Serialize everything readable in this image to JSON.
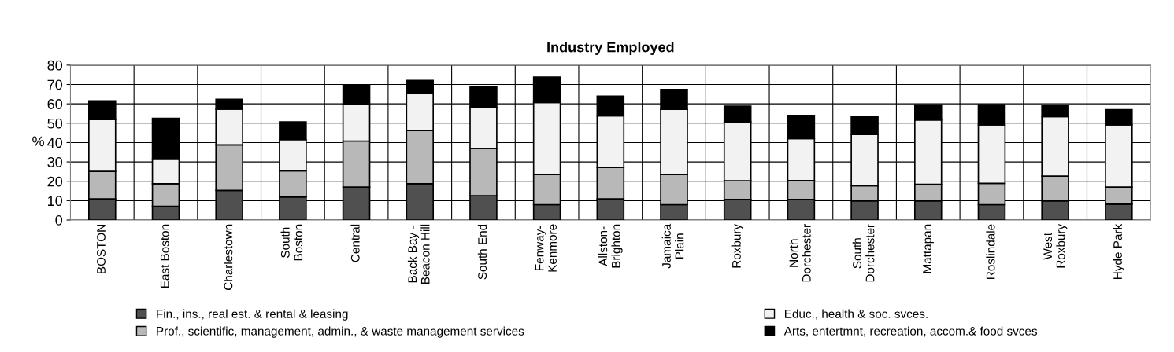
{
  "chart_data": {
    "type": "bar",
    "title": "Industry Employed",
    "ylabel": "%",
    "stacked": true,
    "categories": [
      "BOSTON",
      "East Boston",
      "Charlestown",
      "South\nBoston",
      "Central",
      "Back Bay -\nBeacon Hill",
      "South End",
      "Fenway-\nKenmore",
      "Allston-\nBrighton",
      "Jamaica\nPlain",
      "Roxbury",
      "North\nDorchester",
      "South\nDorchester",
      "Mattapan",
      "Roslindale",
      "West\nRoxbury",
      "Hyde Park"
    ],
    "series": [
      {
        "name": "Fin., ins., real est. & rental & leasing",
        "color": "#505050",
        "values": [
          10.9,
          7.1,
          15.3,
          11.9,
          17.0,
          18.7,
          12.5,
          7.9,
          10.9,
          7.9,
          10.6,
          10.6,
          9.9,
          9.9,
          7.9,
          9.9,
          8.2
        ]
      },
      {
        "name": "Prof., scientific, management, admin., & waste management services",
        "color": "#b8b8b8",
        "values": [
          14.2,
          11.6,
          23.5,
          13.5,
          23.8,
          27.5,
          24.5,
          15.6,
          16.2,
          15.6,
          9.7,
          9.8,
          7.8,
          8.5,
          11.0,
          12.8,
          8.8
        ]
      },
      {
        "name": "Educ., health & soc. svces.",
        "color": "#f2f2f2",
        "values": [
          26.8,
          12.7,
          18.5,
          16.1,
          19.1,
          19.2,
          21.1,
          37.2,
          26.7,
          33.7,
          30.4,
          21.6,
          26.5,
          33.3,
          30.2,
          30.7,
          32.1
        ]
      },
      {
        "name": "Arts, entertmnt, recreation, accom.& food svces",
        "color": "#000000",
        "values": [
          9.7,
          21.1,
          5.1,
          9.2,
          10.0,
          6.7,
          10.8,
          13.1,
          10.2,
          10.2,
          8.1,
          12.0,
          9.0,
          7.8,
          10.5,
          5.5,
          7.9
        ]
      }
    ],
    "ylim": [
      0,
      80
    ],
    "yticks": [
      0,
      10,
      20,
      30,
      40,
      50,
      60,
      70,
      80
    ],
    "grid": true,
    "legend": "bottom"
  }
}
